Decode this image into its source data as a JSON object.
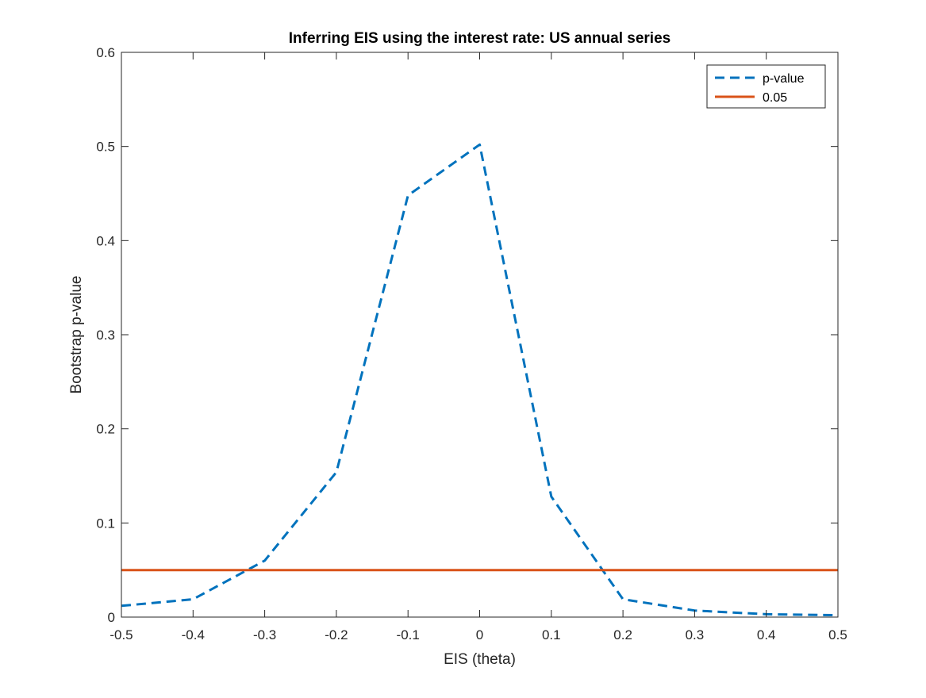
{
  "chart_data": {
    "type": "line",
    "title": "Inferring EIS using the interest rate: US annual series",
    "xlabel": "EIS (theta)",
    "ylabel": "Bootstrap p-value",
    "xlim": [
      -0.5,
      0.5
    ],
    "ylim": [
      0,
      0.6
    ],
    "xticks": [
      -0.5,
      -0.4,
      -0.3,
      -0.2,
      -0.1,
      0,
      0.1,
      0.2,
      0.3,
      0.4,
      0.5
    ],
    "xtick_labels": [
      "-0.5",
      "-0.4",
      "-0.3",
      "-0.2",
      "-0.1",
      "0",
      "0.1",
      "0.2",
      "0.3",
      "0.4",
      "0.5"
    ],
    "yticks": [
      0,
      0.1,
      0.2,
      0.3,
      0.4,
      0.5,
      0.6
    ],
    "ytick_labels": [
      "0",
      "0.1",
      "0.2",
      "0.3",
      "0.4",
      "0.5",
      "0.6"
    ],
    "grid": false,
    "legend_position": "top-right",
    "series": [
      {
        "name": "p-value",
        "style": "dashed",
        "color": "#0072BD",
        "x": [
          -0.5,
          -0.4,
          -0.3,
          -0.2,
          -0.1,
          0,
          0.1,
          0.2,
          0.3,
          0.4,
          0.5
        ],
        "y": [
          0.012,
          0.019,
          0.06,
          0.154,
          0.448,
          0.502,
          0.128,
          0.019,
          0.007,
          0.003,
          0.002
        ]
      },
      {
        "name": "0.05",
        "style": "solid",
        "color": "#D95319",
        "x": [
          -0.5,
          0.5
        ],
        "y": [
          0.05,
          0.05
        ]
      }
    ]
  }
}
